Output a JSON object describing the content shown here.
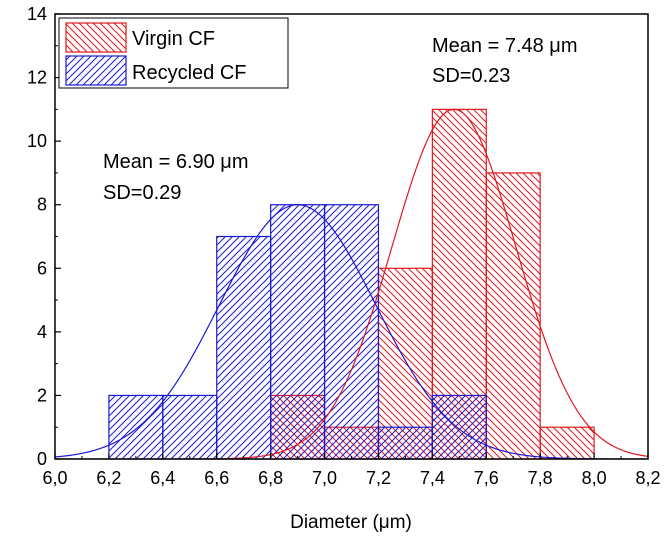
{
  "chart_data": {
    "type": "bar",
    "xlabel": "Diameter (μm)",
    "ylabel": "",
    "xlim": [
      6.0,
      8.2
    ],
    "ylim": [
      0,
      14
    ],
    "x_ticks": [
      6.0,
      6.2,
      6.4,
      6.6,
      6.8,
      7.0,
      7.2,
      7.4,
      7.6,
      7.8,
      8.0,
      8.2
    ],
    "x_tick_labels": [
      "6,0",
      "6,2",
      "6,4",
      "6,6",
      "6,8",
      "7,0",
      "7,2",
      "7,4",
      "7,6",
      "7,8",
      "8,0",
      "8,2"
    ],
    "y_ticks": [
      0,
      2,
      4,
      6,
      8,
      10,
      12,
      14
    ],
    "y_tick_labels": [
      "0",
      "2",
      "4",
      "6",
      "8",
      "10",
      "12",
      "14"
    ],
    "bin_width": 0.2,
    "legend_position": "top-left",
    "series": [
      {
        "name": "Virgin CF",
        "color": "#e0191e",
        "bins_start": [
          6.8,
          7.0,
          7.2,
          7.4,
          7.6,
          7.8
        ],
        "values": [
          2,
          1,
          6,
          11,
          9,
          1
        ],
        "fit_mean": 7.48,
        "fit_sd": 0.23,
        "fit_peak": 11
      },
      {
        "name": "Recycled CF",
        "color": "#1a1ad6",
        "bins_start": [
          6.2,
          6.4,
          6.6,
          6.8,
          7.0,
          7.2,
          7.4
        ],
        "values": [
          2,
          2,
          7,
          8,
          8,
          1,
          2
        ],
        "fit_mean": 6.9,
        "fit_sd": 0.29,
        "fit_peak": 8
      }
    ],
    "annotations": [
      {
        "line1": "Mean = 7.48 μm",
        "line2": "SD=0.23"
      },
      {
        "line1": "Mean = 6.90 μm",
        "line2": "SD=0.29"
      }
    ]
  }
}
